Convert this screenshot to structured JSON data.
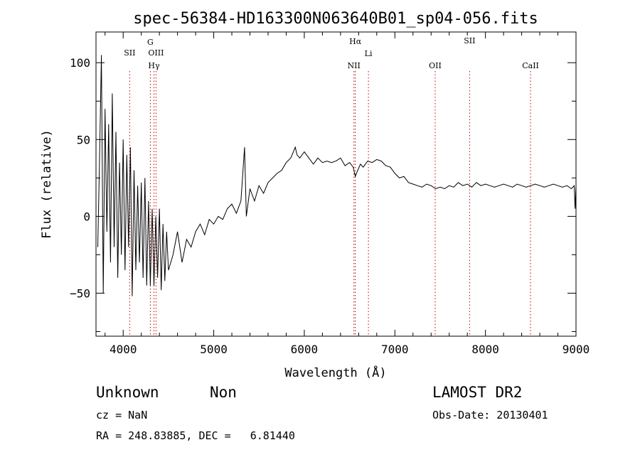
{
  "chart_data": {
    "type": "line",
    "title": "spec-56384-HD163300N063640B01_sp04-056.fits",
    "xlabel": "Wavelength (Å)",
    "ylabel": "Flux (relative)",
    "xlim": [
      3700,
      9000
    ],
    "ylim": [
      -78,
      120
    ],
    "xticks": [
      4000,
      5000,
      6000,
      7000,
      8000,
      9000
    ],
    "yticks": [
      -50,
      0,
      50,
      100
    ],
    "grid": false,
    "series": [
      {
        "color": "#000000",
        "x": [
          3720,
          3740,
          3760,
          3780,
          3800,
          3820,
          3840,
          3860,
          3880,
          3900,
          3920,
          3940,
          3960,
          3980,
          4000,
          4020,
          4040,
          4060,
          4080,
          4100,
          4120,
          4140,
          4160,
          4180,
          4200,
          4220,
          4240,
          4260,
          4280,
          4300,
          4320,
          4340,
          4360,
          4380,
          4400,
          4420,
          4440,
          4460,
          4480,
          4500,
          4550,
          4600,
          4650,
          4700,
          4750,
          4800,
          4850,
          4900,
          4950,
          5000,
          5050,
          5100,
          5150,
          5200,
          5250,
          5300,
          5340,
          5360,
          5400,
          5450,
          5500,
          5550,
          5600,
          5650,
          5700,
          5750,
          5800,
          5850,
          5880,
          5900,
          5920,
          5950,
          6000,
          6050,
          6100,
          6150,
          6200,
          6250,
          6300,
          6350,
          6400,
          6450,
          6500,
          6540,
          6563,
          6590,
          6620,
          6650,
          6700,
          6750,
          6800,
          6850,
          6900,
          6950,
          7000,
          7050,
          7100,
          7150,
          7200,
          7250,
          7300,
          7350,
          7400,
          7450,
          7500,
          7550,
          7600,
          7650,
          7700,
          7750,
          7800,
          7850,
          7900,
          7950,
          8000,
          8050,
          8100,
          8150,
          8200,
          8250,
          8300,
          8350,
          8400,
          8450,
          8500,
          8550,
          8600,
          8650,
          8700,
          8750,
          8800,
          8850,
          8900,
          8950,
          8980,
          8990,
          9000
        ],
        "y": [
          -20,
          40,
          105,
          -50,
          70,
          -10,
          60,
          -30,
          80,
          -20,
          55,
          -40,
          35,
          -25,
          50,
          -35,
          40,
          -20,
          45,
          -52,
          30,
          -35,
          20,
          -30,
          22,
          -40,
          25,
          -45,
          10,
          -45,
          5,
          -45,
          0,
          -40,
          5,
          -48,
          -5,
          -42,
          -10,
          -35,
          -25,
          -10,
          -30,
          -15,
          -20,
          -10,
          -5,
          -12,
          -2,
          -5,
          0,
          -2,
          5,
          8,
          2,
          10,
          45,
          0,
          18,
          10,
          20,
          15,
          22,
          25,
          28,
          30,
          35,
          38,
          42,
          45,
          40,
          38,
          42,
          38,
          34,
          38,
          35,
          36,
          35,
          36,
          38,
          33,
          35,
          32,
          26,
          30,
          34,
          32,
          36,
          35,
          37,
          36,
          33,
          32,
          28,
          25,
          26,
          22,
          21,
          20,
          19,
          21,
          20,
          18,
          19,
          18,
          20,
          19,
          22,
          20,
          21,
          19,
          22,
          20,
          21,
          20,
          19,
          20,
          21,
          20,
          19,
          21,
          20,
          19,
          20,
          21,
          20,
          19,
          20,
          21,
          20,
          19,
          20,
          18,
          20,
          5,
          20
        ]
      }
    ],
    "lines": [
      {
        "wavelength": 4072,
        "labels": [
          "SII"
        ]
      },
      {
        "wavelength": 4300,
        "labels": [
          "G"
        ]
      },
      {
        "wavelength": 4340,
        "labels": [
          "Hγ"
        ]
      },
      {
        "wavelength": 4363,
        "labels": [
          "OIII"
        ]
      },
      {
        "wavelength": 6548,
        "labels": [
          "NII"
        ]
      },
      {
        "wavelength": 6563,
        "labels": [
          "Hα"
        ]
      },
      {
        "wavelength": 6708,
        "labels": [
          "Li"
        ]
      },
      {
        "wavelength": 7445,
        "labels": [
          "OII"
        ]
      },
      {
        "wavelength": 7825,
        "labels": [
          "SII"
        ]
      },
      {
        "wavelength": 8498,
        "labels": [
          "CaII"
        ]
      }
    ]
  },
  "footer": {
    "object_class": "Unknown",
    "object_subclass": "Non",
    "cz": "cz = NaN",
    "coords": "RA = 248.83885, DEC =   6.81440",
    "survey": "LAMOST DR2",
    "obs_date": "Obs-Date: 20130401"
  }
}
